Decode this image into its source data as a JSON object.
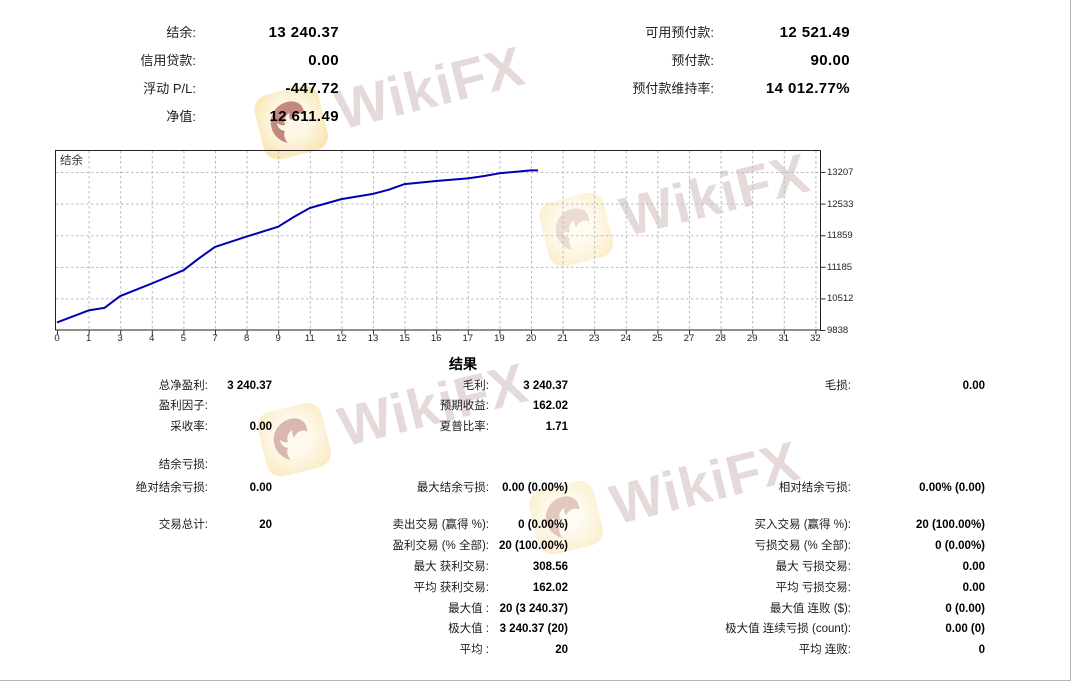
{
  "watermark": {
    "text": "WikiFX"
  },
  "account_summary": {
    "left": [
      {
        "label": "结余:",
        "value": "13 240.37"
      },
      {
        "label": "信用贷款:",
        "value": "0.00"
      },
      {
        "label": "浮动 P/L:",
        "value": "-447.72"
      },
      {
        "label": "净值:",
        "value": "12 611.49"
      }
    ],
    "right": [
      {
        "label": "可用预付款:",
        "value": "12 521.49"
      },
      {
        "label": "预付款:",
        "value": "90.00"
      },
      {
        "label": "预付款维持率:",
        "value": "14 012.77%"
      }
    ]
  },
  "chart_data": {
    "type": "line",
    "title": "结余",
    "series": [
      {
        "name": "结余",
        "x": [
          0,
          1,
          2,
          3,
          4,
          5,
          6,
          7,
          8,
          9,
          10,
          11,
          12,
          13,
          14,
          15,
          16,
          17,
          18,
          19,
          20
        ],
        "values": [
          10000.0,
          10255,
          10310,
          10560,
          10830,
          11110,
          11370,
          11610,
          11830,
          12040,
          12250,
          12440,
          12630,
          12740,
          12830,
          12950,
          13015,
          13070,
          13120,
          13180,
          13240.37
        ]
      }
    ],
    "x_tick_labels": [
      "0",
      "1",
      "3",
      "4",
      "5",
      "7",
      "8",
      "9",
      "11",
      "12",
      "13",
      "15",
      "16",
      "17",
      "19",
      "20",
      "21",
      "23",
      "24",
      "25",
      "27",
      "28",
      "29",
      "31",
      "32"
    ],
    "y_ticks": [
      9838,
      10512,
      11185,
      11859,
      12533,
      13207
    ],
    "ylim": [
      9838,
      13680
    ],
    "line_color": "#0000b4",
    "grid": "dashed",
    "legend_position": "top-left-inside"
  },
  "results": {
    "header": "结果",
    "rows": [
      {
        "c1": {
          "label": "总净盈利:",
          "value": "3 240.37"
        },
        "c2": {
          "label": "毛利:",
          "value": "3 240.37"
        },
        "c3": {
          "label": "毛损:",
          "value": "0.00"
        }
      },
      {
        "c1": {
          "label": "盈利因子:",
          "value": ""
        },
        "c2": {
          "label": "预期收益:",
          "value": "162.02"
        },
        "c3": null
      },
      {
        "c1": {
          "label": "采收率:",
          "value": "0.00"
        },
        "c2": {
          "label": "夏普比率:",
          "value": "1.71"
        },
        "c3": null
      },
      {
        "c1": {
          "label": "结余亏损:",
          "value": ""
        },
        "c2": null,
        "c3": null
      },
      {
        "c1": {
          "label": "绝对结余亏损:",
          "value": "0.00"
        },
        "c2": {
          "label": "最大结余亏损:",
          "value": "0.00 (0.00%)"
        },
        "c3": {
          "label": "相对结余亏损:",
          "value": "0.00% (0.00)"
        }
      },
      {
        "c1": {
          "label": "交易总计:",
          "value": "20"
        },
        "c2": {
          "label": "卖出交易 (赢得 %):",
          "value": "0 (0.00%)"
        },
        "c3": {
          "label": "买入交易 (赢得 %):",
          "value": "20 (100.00%)"
        }
      },
      {
        "c1": null,
        "c2": {
          "label": "盈利交易 (% 全部):",
          "value": "20 (100.00%)"
        },
        "c3": {
          "label": "亏损交易 (% 全部):",
          "value": "0 (0.00%)"
        }
      },
      {
        "c1": null,
        "c2": {
          "label": "最大 获利交易:",
          "value": "308.56"
        },
        "c3": {
          "label": "最大 亏损交易:",
          "value": "0.00"
        }
      },
      {
        "c1": null,
        "c2": {
          "label": "平均 获利交易:",
          "value": "162.02"
        },
        "c3": {
          "label": "平均 亏损交易:",
          "value": "0.00"
        }
      },
      {
        "c1": null,
        "c2": {
          "label": "最大值 :",
          "value": "20 (3 240.37)"
        },
        "c3": {
          "label": "最大值 连败 ($):",
          "value": "0 (0.00)"
        }
      },
      {
        "c1": null,
        "c2": {
          "label": "极大值 :",
          "value": "3 240.37 (20)"
        },
        "c3": {
          "label": "极大值 连续亏损 (count):",
          "value": "0.00 (0)"
        }
      },
      {
        "c1": null,
        "c2": {
          "label": "平均 :",
          "value": "20"
        },
        "c3": {
          "label": "平均 连败:",
          "value": "0"
        }
      }
    ]
  }
}
